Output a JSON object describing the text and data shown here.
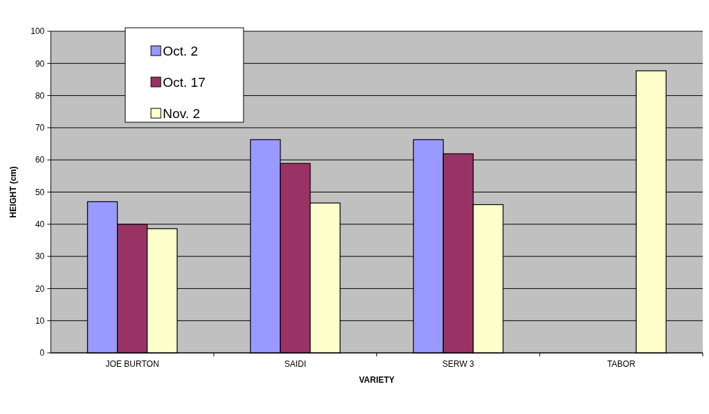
{
  "chart_data": {
    "type": "bar",
    "xlabel": "VARIETY",
    "ylabel": "HEIGHT (cm)",
    "categories": [
      "JOE BURTON",
      "SAIDI",
      "SERW 3",
      "TABOR"
    ],
    "series": [
      {
        "name": "Oct. 2",
        "color": "#9999ff",
        "values": [
          47,
          66.3,
          66.3,
          null
        ]
      },
      {
        "name": "Oct. 17",
        "color": "#993366",
        "values": [
          40,
          58.9,
          61.9,
          null
        ]
      },
      {
        "name": "Nov. 2",
        "color": "#ffffcc",
        "values": [
          38.6,
          46.6,
          46.1,
          87.7
        ]
      }
    ],
    "ylim": [
      0,
      100
    ],
    "yticks": [
      0,
      10,
      20,
      30,
      40,
      50,
      60,
      70,
      80,
      90,
      100
    ],
    "grid": "y",
    "legend": "top left"
  }
}
